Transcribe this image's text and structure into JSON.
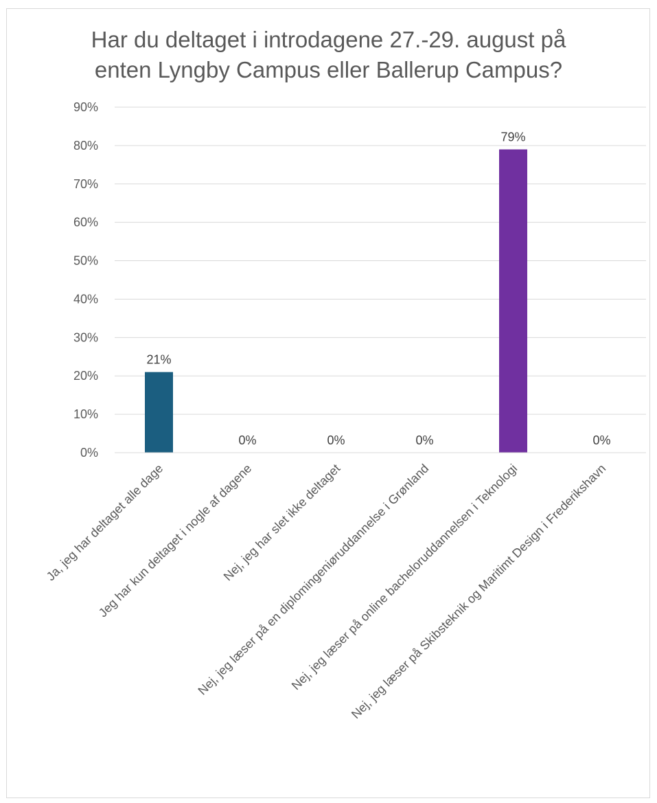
{
  "chart_data": {
    "type": "bar",
    "title_lines": [
      "Har du deltaget i introdagene 27.-29. august på",
      "enten Lyngby Campus eller Ballerup Campus?"
    ],
    "categories": [
      "Ja, jeg har deltaget alle dage",
      "Jeg har kun deltaget i nogle af dagene",
      "Nej, jeg har slet ikke deltaget",
      "Nej, jeg læser på en diplomingeniøruddannelse i Grønland",
      "Nej, jeg læser på online bacheloruddannelsen i Teknologi",
      "Nej, jeg læser på Skibsteknik og Maritimt Design i Frederikshavn"
    ],
    "values": [
      21,
      0,
      0,
      0,
      79,
      0
    ],
    "data_labels": [
      "21%",
      "0%",
      "0%",
      "0%",
      "79%",
      "0%"
    ],
    "bar_colors": [
      "#1b5e80",
      "#1b5e80",
      "#1b5e80",
      "#1b5e80",
      "#7030a0",
      "#1b5e80"
    ],
    "ylim": [
      0,
      90
    ],
    "yticks": [
      0,
      10,
      20,
      30,
      40,
      50,
      60,
      70,
      80,
      90
    ],
    "ytick_labels": [
      "0%",
      "10%",
      "20%",
      "30%",
      "40%",
      "50%",
      "60%",
      "70%",
      "80%",
      "90%"
    ],
    "grid": true,
    "gridline_color": "#d9d9d9",
    "legend": "none"
  }
}
